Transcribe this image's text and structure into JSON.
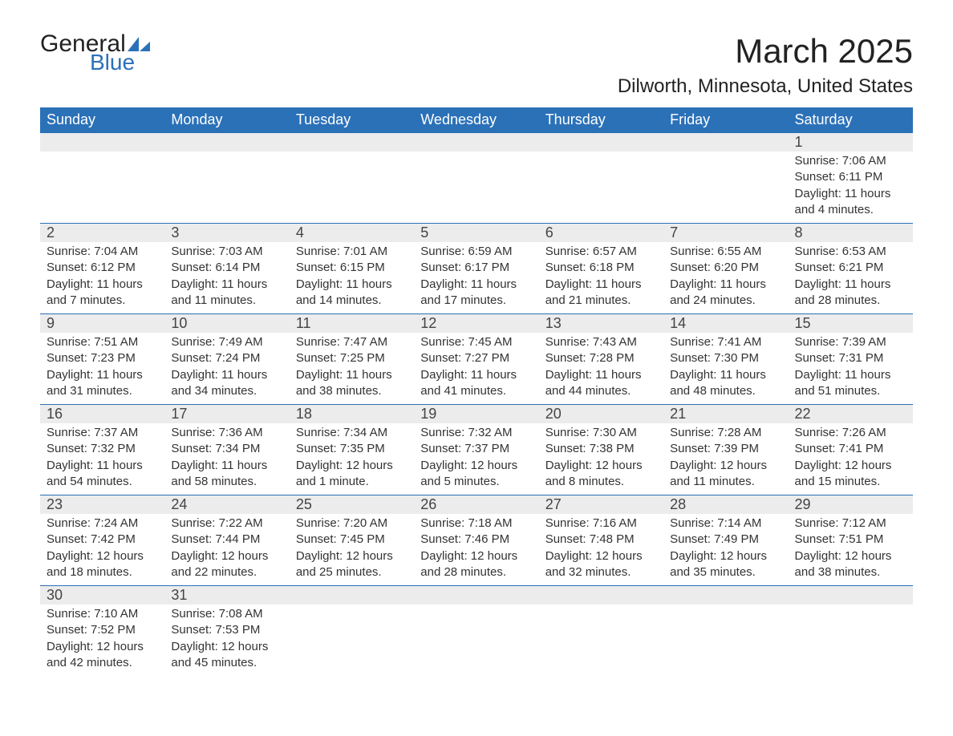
{
  "brand": {
    "text_general": "General",
    "text_blue": "Blue",
    "logo_color": "#2b71b8"
  },
  "title": "March 2025",
  "location": "Dilworth, Minnesota, United States",
  "colors": {
    "header_bg": "#2b71b8",
    "header_fg": "#ffffff",
    "daynum_bg": "#ececec",
    "text": "#333333",
    "border": "#2b71b8"
  },
  "weekdays": [
    "Sunday",
    "Monday",
    "Tuesday",
    "Wednesday",
    "Thursday",
    "Friday",
    "Saturday"
  ],
  "weeks": [
    [
      null,
      null,
      null,
      null,
      null,
      null,
      {
        "n": "1",
        "sunrise": "7:06 AM",
        "sunset": "6:11 PM",
        "daylight": "11 hours and 4 minutes."
      }
    ],
    [
      {
        "n": "2",
        "sunrise": "7:04 AM",
        "sunset": "6:12 PM",
        "daylight": "11 hours and 7 minutes."
      },
      {
        "n": "3",
        "sunrise": "7:03 AM",
        "sunset": "6:14 PM",
        "daylight": "11 hours and 11 minutes."
      },
      {
        "n": "4",
        "sunrise": "7:01 AM",
        "sunset": "6:15 PM",
        "daylight": "11 hours and 14 minutes."
      },
      {
        "n": "5",
        "sunrise": "6:59 AM",
        "sunset": "6:17 PM",
        "daylight": "11 hours and 17 minutes."
      },
      {
        "n": "6",
        "sunrise": "6:57 AM",
        "sunset": "6:18 PM",
        "daylight": "11 hours and 21 minutes."
      },
      {
        "n": "7",
        "sunrise": "6:55 AM",
        "sunset": "6:20 PM",
        "daylight": "11 hours and 24 minutes."
      },
      {
        "n": "8",
        "sunrise": "6:53 AM",
        "sunset": "6:21 PM",
        "daylight": "11 hours and 28 minutes."
      }
    ],
    [
      {
        "n": "9",
        "sunrise": "7:51 AM",
        "sunset": "7:23 PM",
        "daylight": "11 hours and 31 minutes."
      },
      {
        "n": "10",
        "sunrise": "7:49 AM",
        "sunset": "7:24 PM",
        "daylight": "11 hours and 34 minutes."
      },
      {
        "n": "11",
        "sunrise": "7:47 AM",
        "sunset": "7:25 PM",
        "daylight": "11 hours and 38 minutes."
      },
      {
        "n": "12",
        "sunrise": "7:45 AM",
        "sunset": "7:27 PM",
        "daylight": "11 hours and 41 minutes."
      },
      {
        "n": "13",
        "sunrise": "7:43 AM",
        "sunset": "7:28 PM",
        "daylight": "11 hours and 44 minutes."
      },
      {
        "n": "14",
        "sunrise": "7:41 AM",
        "sunset": "7:30 PM",
        "daylight": "11 hours and 48 minutes."
      },
      {
        "n": "15",
        "sunrise": "7:39 AM",
        "sunset": "7:31 PM",
        "daylight": "11 hours and 51 minutes."
      }
    ],
    [
      {
        "n": "16",
        "sunrise": "7:37 AM",
        "sunset": "7:32 PM",
        "daylight": "11 hours and 54 minutes."
      },
      {
        "n": "17",
        "sunrise": "7:36 AM",
        "sunset": "7:34 PM",
        "daylight": "11 hours and 58 minutes."
      },
      {
        "n": "18",
        "sunrise": "7:34 AM",
        "sunset": "7:35 PM",
        "daylight": "12 hours and 1 minute."
      },
      {
        "n": "19",
        "sunrise": "7:32 AM",
        "sunset": "7:37 PM",
        "daylight": "12 hours and 5 minutes."
      },
      {
        "n": "20",
        "sunrise": "7:30 AM",
        "sunset": "7:38 PM",
        "daylight": "12 hours and 8 minutes."
      },
      {
        "n": "21",
        "sunrise": "7:28 AM",
        "sunset": "7:39 PM",
        "daylight": "12 hours and 11 minutes."
      },
      {
        "n": "22",
        "sunrise": "7:26 AM",
        "sunset": "7:41 PM",
        "daylight": "12 hours and 15 minutes."
      }
    ],
    [
      {
        "n": "23",
        "sunrise": "7:24 AM",
        "sunset": "7:42 PM",
        "daylight": "12 hours and 18 minutes."
      },
      {
        "n": "24",
        "sunrise": "7:22 AM",
        "sunset": "7:44 PM",
        "daylight": "12 hours and 22 minutes."
      },
      {
        "n": "25",
        "sunrise": "7:20 AM",
        "sunset": "7:45 PM",
        "daylight": "12 hours and 25 minutes."
      },
      {
        "n": "26",
        "sunrise": "7:18 AM",
        "sunset": "7:46 PM",
        "daylight": "12 hours and 28 minutes."
      },
      {
        "n": "27",
        "sunrise": "7:16 AM",
        "sunset": "7:48 PM",
        "daylight": "12 hours and 32 minutes."
      },
      {
        "n": "28",
        "sunrise": "7:14 AM",
        "sunset": "7:49 PM",
        "daylight": "12 hours and 35 minutes."
      },
      {
        "n": "29",
        "sunrise": "7:12 AM",
        "sunset": "7:51 PM",
        "daylight": "12 hours and 38 minutes."
      }
    ],
    [
      {
        "n": "30",
        "sunrise": "7:10 AM",
        "sunset": "7:52 PM",
        "daylight": "12 hours and 42 minutes."
      },
      {
        "n": "31",
        "sunrise": "7:08 AM",
        "sunset": "7:53 PM",
        "daylight": "12 hours and 45 minutes."
      },
      null,
      null,
      null,
      null,
      null
    ]
  ],
  "labels": {
    "sunrise": "Sunrise:",
    "sunset": "Sunset:",
    "daylight": "Daylight:"
  }
}
